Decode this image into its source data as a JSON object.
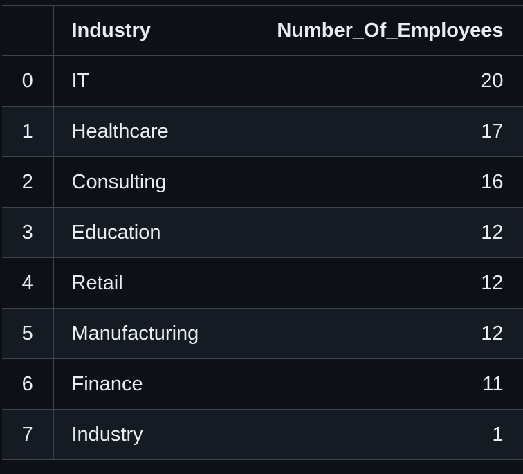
{
  "table": {
    "columns": {
      "index": "",
      "industry": "Industry",
      "employees": "Number_Of_Employees"
    },
    "rows": [
      {
        "index": "0",
        "industry": "IT",
        "employees": "20"
      },
      {
        "index": "1",
        "industry": "Healthcare",
        "employees": "17"
      },
      {
        "index": "2",
        "industry": "Consulting",
        "employees": "16"
      },
      {
        "index": "3",
        "industry": "Education",
        "employees": "12"
      },
      {
        "index": "4",
        "industry": "Retail",
        "employees": "12"
      },
      {
        "index": "5",
        "industry": "Manufacturing",
        "employees": "12"
      },
      {
        "index": "6",
        "industry": "Finance",
        "employees": "11"
      },
      {
        "index": "7",
        "industry": "Industry",
        "employees": "1"
      }
    ]
  },
  "colors": {
    "background": "#0d1117",
    "row_alt": "#151b23",
    "border": "#3d444d",
    "text": "#e6edf3"
  }
}
